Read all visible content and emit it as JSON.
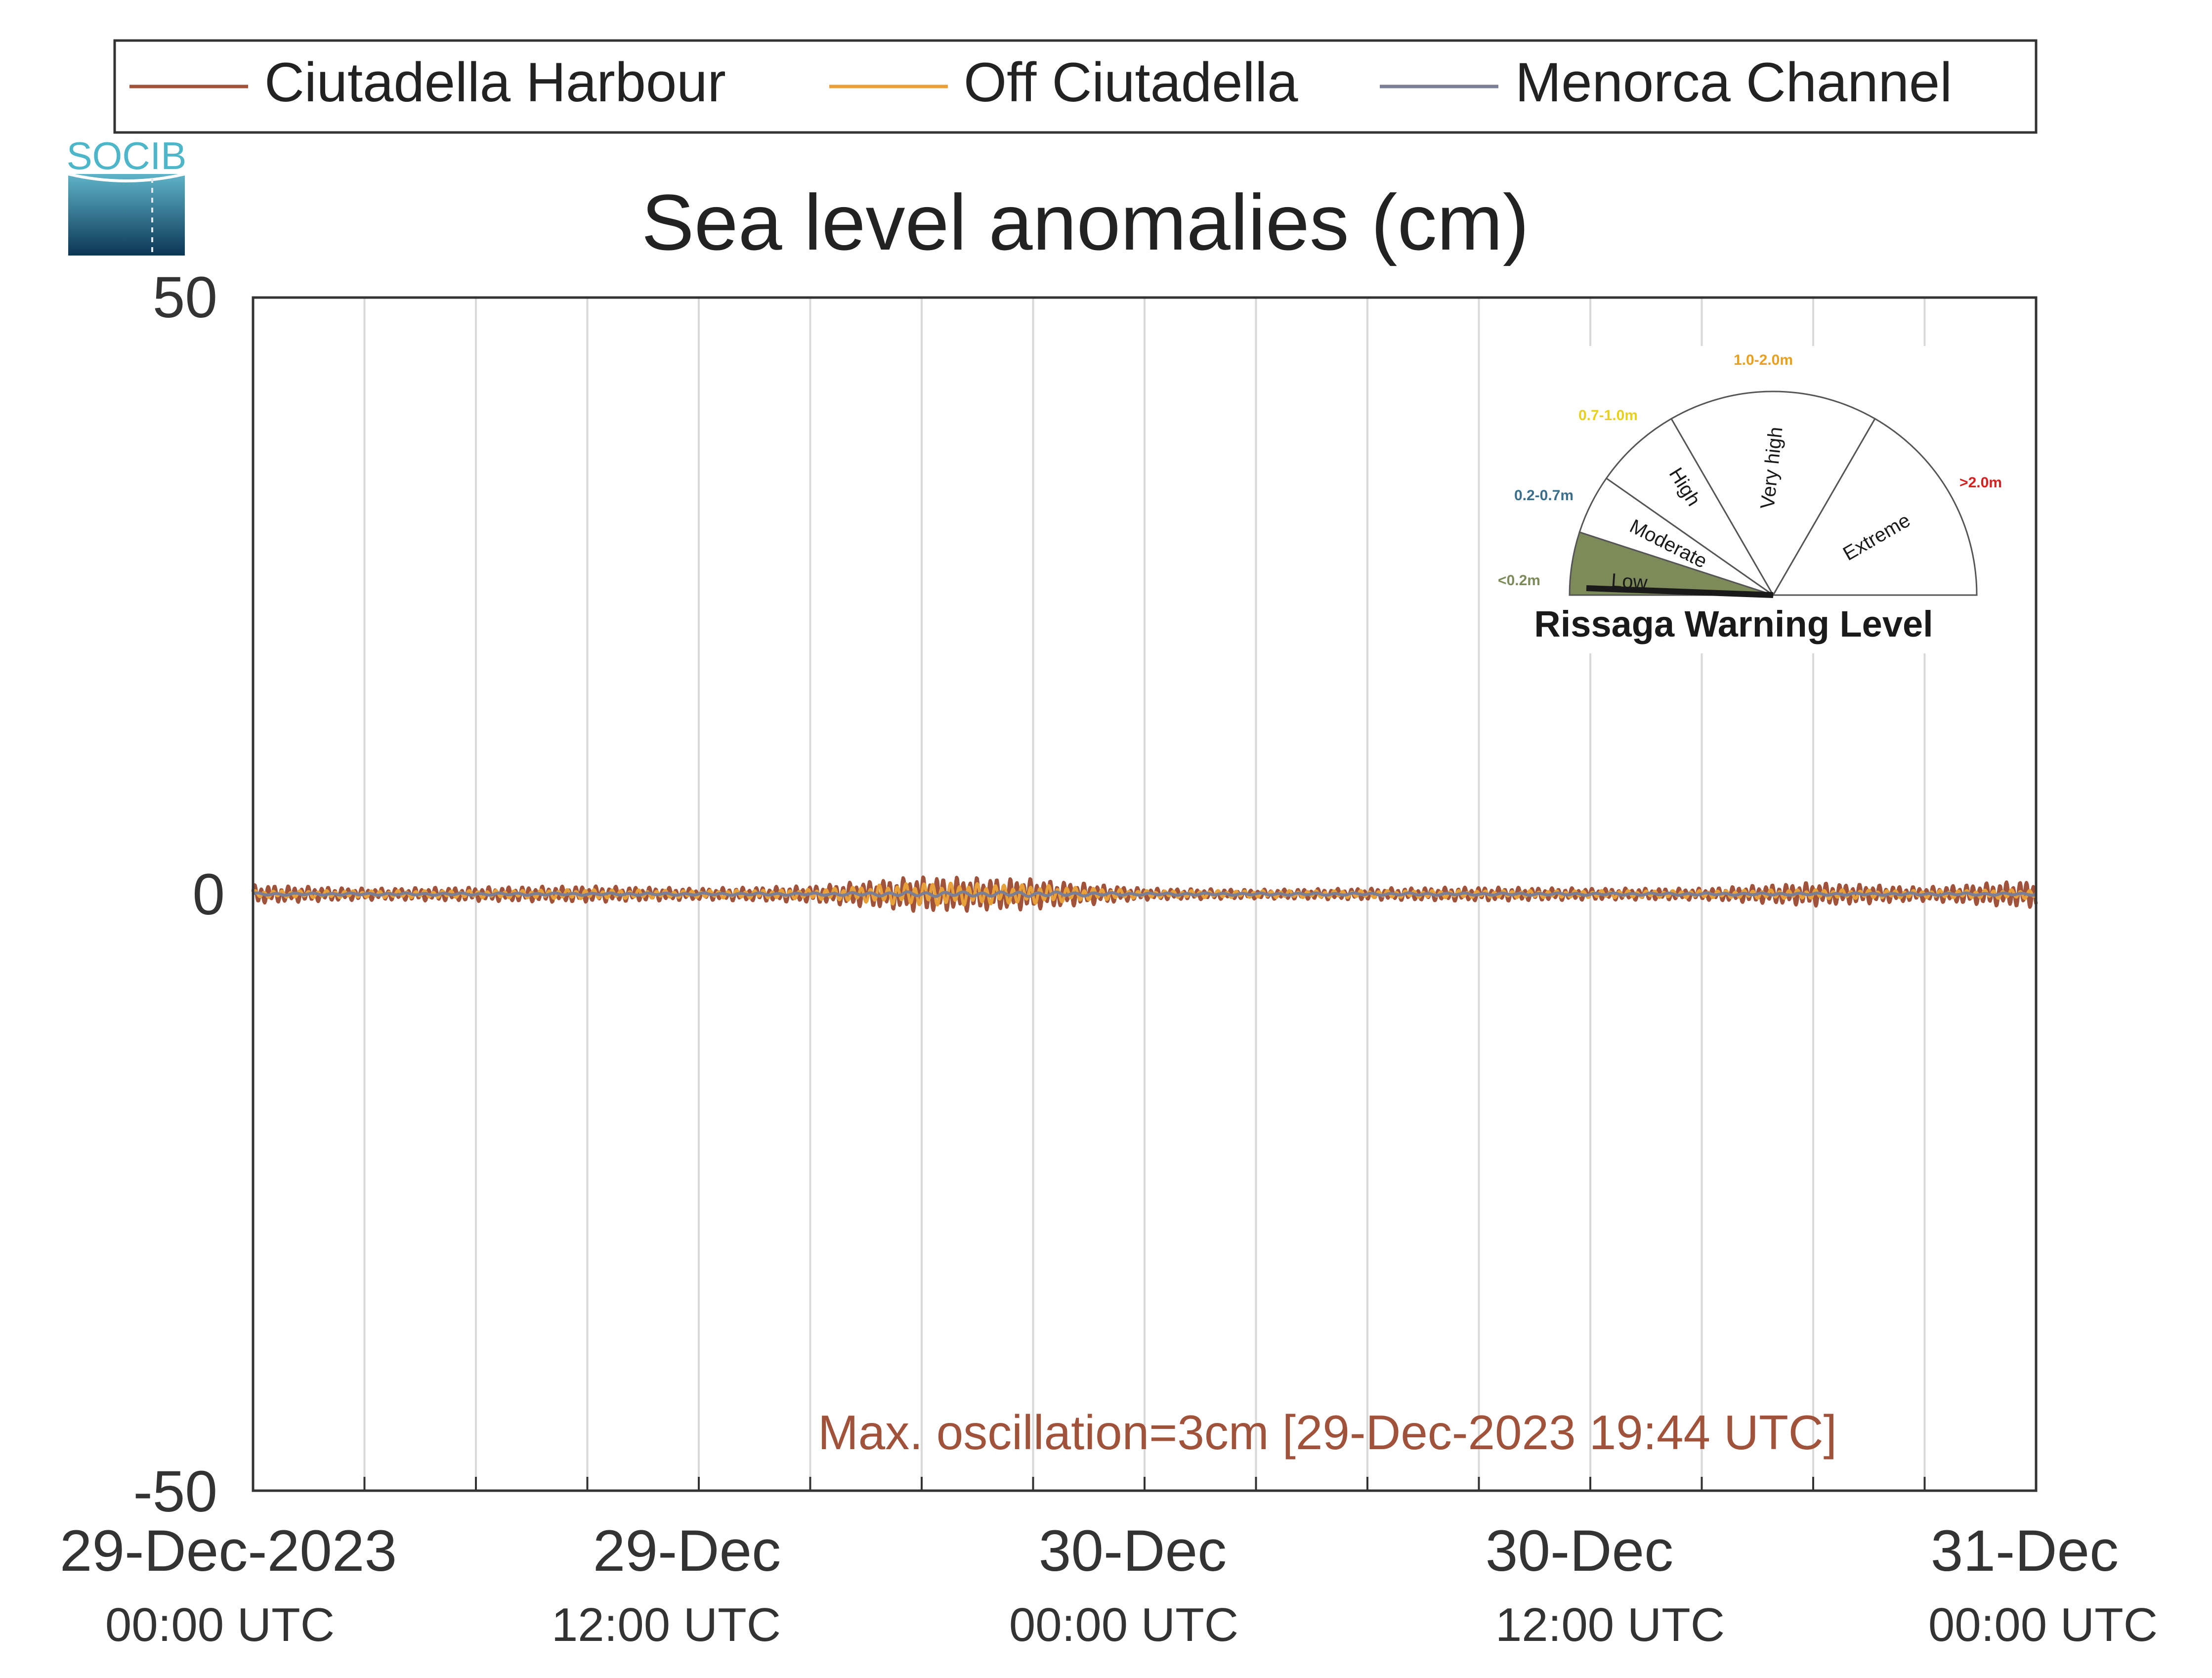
{
  "chart_data": {
    "type": "line",
    "title": "Sea level anomalies (cm)",
    "xlabel": "",
    "ylabel": "",
    "ylim": [
      -50,
      50
    ],
    "yticks": [
      "50",
      "0",
      "-50"
    ],
    "x_range": [
      "2023-12-29 00:00",
      "2023-12-31 00:00"
    ],
    "x_ticks": [
      {
        "date": "29-Dec-2023",
        "time": "00:00 UTC"
      },
      {
        "date": "29-Dec",
        "time": "12:00 UTC"
      },
      {
        "date": "30-Dec",
        "time": "00:00 UTC"
      },
      {
        "date": "30-Dec",
        "time": "12:00 UTC"
      },
      {
        "date": "31-Dec",
        "time": "00:00 UTC"
      }
    ],
    "grid": "vertical every 3 hours",
    "legend_position": "top",
    "series": [
      {
        "name": "Ciutadella Harbour",
        "color": "#a0523a",
        "x_hours": [
          0,
          3,
          6,
          9,
          12,
          15,
          18,
          21,
          24,
          27,
          30,
          33,
          36,
          39,
          42,
          45,
          48
        ],
        "amplitude_cm": [
          0.8,
          0.5,
          0.6,
          0.7,
          0.5,
          0.7,
          1.5,
          1.3,
          0.5,
          0.4,
          0.5,
          0.6,
          0.5,
          0.5,
          1.0,
          0.6,
          1.2
        ]
      },
      {
        "name": "Off Ciutadella",
        "color": "#e8a03a",
        "x_hours": [
          0,
          3,
          6,
          9,
          12,
          15,
          18,
          21,
          24,
          27,
          30,
          33,
          36,
          39,
          42,
          45,
          48
        ],
        "amplitude_cm": [
          0.3,
          0.3,
          0.3,
          0.4,
          0.3,
          0.4,
          1.0,
          0.8,
          0.3,
          0.3,
          0.3,
          0.3,
          0.3,
          0.3,
          0.4,
          0.3,
          0.4
        ]
      },
      {
        "name": "Menorca Channel",
        "color": "#7a7f96",
        "x_hours": [
          0,
          3,
          6,
          9,
          12,
          15,
          18,
          21,
          24,
          27,
          30,
          33,
          36,
          39,
          42,
          45,
          48
        ],
        "amplitude_cm": [
          0.1,
          0.1,
          0.1,
          0.1,
          0.1,
          0.1,
          0.2,
          0.2,
          0.1,
          0.1,
          0.1,
          0.1,
          0.1,
          0.1,
          0.1,
          0.1,
          0.1
        ]
      }
    ],
    "annotation": "Max. oscillation=3cm [29-Dec-2023 19:44 UTC]",
    "annotation_color": "#a0523a"
  },
  "logo": {
    "text": "SOCIB"
  },
  "gauge": {
    "title": "Rissaga Warning Level",
    "current_level": "Low",
    "sectors": [
      {
        "label": "Low",
        "range": "<0.2m",
        "range_color": "#7d8a5a",
        "fill": "#7d8a5a"
      },
      {
        "label": "Moderate",
        "range": "0.2-0.7m",
        "range_color": "#3a6e8a",
        "fill": "#ffffff"
      },
      {
        "label": "High",
        "range": "0.7-1.0m",
        "range_color": "#e8d020",
        "fill": "#ffffff"
      },
      {
        "label": "Very high",
        "range": "1.0-2.0m",
        "range_color": "#e8a020",
        "fill": "#ffffff"
      },
      {
        "label": "Extreme",
        "range": ">2.0m",
        "range_color": "#d82020",
        "fill": "#ffffff"
      }
    ]
  }
}
